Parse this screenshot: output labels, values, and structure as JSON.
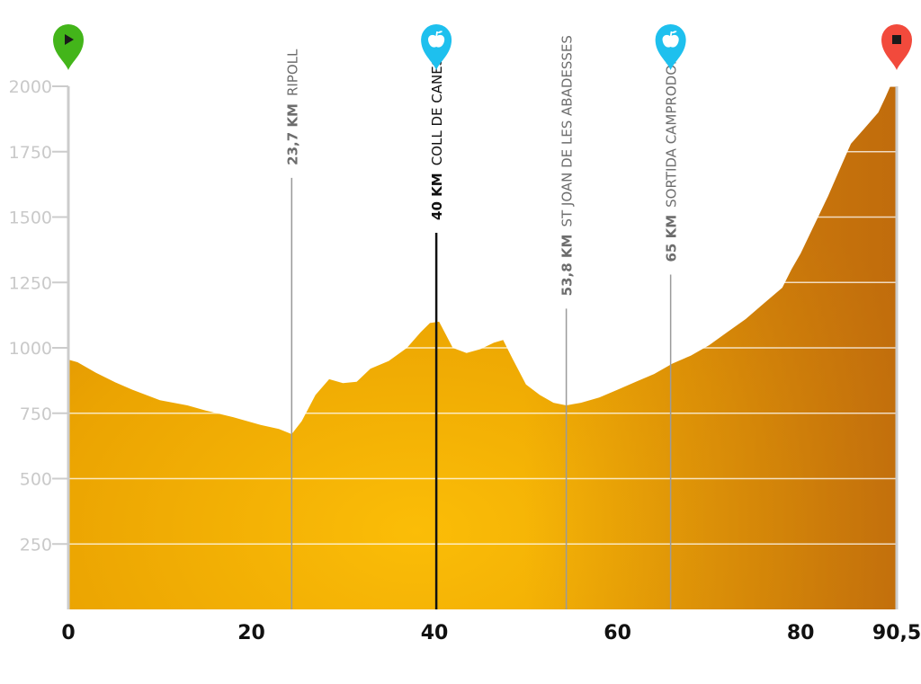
{
  "chart_data": {
    "type": "area",
    "title": "",
    "xlabel": "",
    "ylabel": "",
    "xlim": [
      0,
      90.5
    ],
    "ylim": [
      0,
      2000
    ],
    "x_ticks": [
      {
        "value": 0,
        "label": "0"
      },
      {
        "value": 20,
        "label": "20"
      },
      {
        "value": 40,
        "label": "40"
      },
      {
        "value": 60,
        "label": "60"
      },
      {
        "value": 80,
        "label": "80"
      },
      {
        "value": 90.5,
        "label": "90,5"
      }
    ],
    "y_ticks": [
      {
        "value": 250,
        "label": "250"
      },
      {
        "value": 500,
        "label": "500"
      },
      {
        "value": 750,
        "label": "750"
      },
      {
        "value": 1000,
        "label": "1000"
      },
      {
        "value": 1250,
        "label": "1250"
      },
      {
        "value": 1500,
        "label": "1500"
      },
      {
        "value": 1750,
        "label": "1750"
      },
      {
        "value": 2000,
        "label": "2000"
      }
    ],
    "grid": true,
    "series": [
      {
        "x": [
          0,
          1,
          3,
          5,
          7,
          10,
          13,
          15,
          18,
          21,
          23,
          24.4,
          25.5,
          27,
          28.5,
          30,
          31.5,
          33,
          35,
          37,
          38.5,
          39.5,
          40.5,
          42,
          43.5,
          45,
          46.5,
          47.5,
          48.5,
          50,
          51.5,
          53,
          54.4,
          56,
          58,
          60,
          62,
          64,
          66,
          68,
          70,
          72,
          74,
          76,
          78,
          79,
          80,
          81.5,
          83,
          84.5,
          85.5,
          87,
          88.5,
          89.3,
          89.8,
          90.5
        ],
        "y": [
          955,
          945,
          905,
          870,
          840,
          800,
          780,
          760,
          735,
          705,
          690,
          670,
          720,
          820,
          880,
          865,
          870,
          920,
          950,
          1000,
          1060,
          1095,
          1100,
          1000,
          980,
          995,
          1020,
          1030,
          960,
          860,
          820,
          790,
          780,
          790,
          810,
          840,
          870,
          900,
          940,
          970,
          1010,
          1060,
          1110,
          1170,
          1230,
          1300,
          1360,
          1470,
          1580,
          1700,
          1780,
          1840,
          1900,
          1960,
          2000,
          2000
        ],
        "color": "#eaa000"
      }
    ],
    "waypoints": [
      {
        "km": 24.4,
        "km_label": "23,7 KM",
        "name": "RIPOLL",
        "top_elevation": 1650,
        "highlight": false
      },
      {
        "km": 40.2,
        "km_label": "40 KM",
        "name": "COLL DE CANES",
        "top_elevation": 1440,
        "highlight": true
      },
      {
        "km": 54.4,
        "km_label": "53,8 KM",
        "name": "ST JOAN DE LES ABADESSES",
        "top_elevation": 1150,
        "highlight": false
      },
      {
        "km": 65.8,
        "km_label": "65 KM",
        "name": "SORTIDA CAMPRODON",
        "top_elevation": 1280,
        "highlight": false
      }
    ],
    "markers": [
      {
        "km": 0,
        "type": "start",
        "color": "#43b51a",
        "icon": "play-icon"
      },
      {
        "km": 40.2,
        "type": "feed",
        "color": "#1ec0ee",
        "icon": "apple-icon"
      },
      {
        "km": 65.8,
        "type": "feed",
        "color": "#1ec0ee",
        "icon": "apple-icon"
      },
      {
        "km": 90.5,
        "type": "finish",
        "color": "#f24a3c",
        "icon": "stop-icon"
      }
    ],
    "colors": {
      "profile_center": "#fbbd07",
      "profile_edge": "#e19a00",
      "profile_right": "#c97010",
      "axis": "#cccccc",
      "gridline": "#ffffff",
      "waypoint_line": "#9a9a9a",
      "highlight_line": "#111111"
    }
  }
}
